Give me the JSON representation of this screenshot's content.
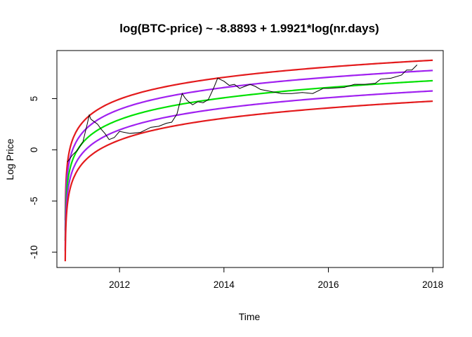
{
  "chart_data": {
    "type": "line",
    "title": "log(BTC-price) ~ -8.8893 + 1.9921*log(nr.days)",
    "xlabel": "Time",
    "ylabel": "Log Price",
    "xlim": [
      2010.8,
      2018.2
    ],
    "ylim": [
      -11.5,
      9.7
    ],
    "x_ticks": [
      2012,
      2014,
      2016,
      2018
    ],
    "x_tick_labels": [
      "2012",
      "2014",
      "2016",
      "2018"
    ],
    "y_ticks": [
      -10,
      -5,
      0,
      5
    ],
    "y_tick_labels": [
      "-10",
      "-5",
      "0",
      "5"
    ],
    "model": {
      "intercept": -8.8893,
      "slope": 1.9921,
      "start_year": 2010.957,
      "x_end": 2018.0
    },
    "bands": [
      {
        "offset": 2,
        "color": "#e31a1c"
      },
      {
        "offset": 1,
        "color": "#a020f0"
      },
      {
        "offset": 0,
        "color": "#00e000"
      },
      {
        "offset": -1,
        "color": "#a020f0"
      },
      {
        "offset": -2,
        "color": "#e31a1c"
      }
    ],
    "price_series": {
      "color": "#000000",
      "x": [
        2011.0,
        2011.1,
        2011.2,
        2011.3,
        2011.38,
        2011.42,
        2011.45,
        2011.5,
        2011.58,
        2011.65,
        2011.72,
        2011.8,
        2011.9,
        2012.0,
        2012.2,
        2012.4,
        2012.6,
        2012.75,
        2012.9,
        2013.0,
        2013.1,
        2013.2,
        2013.25,
        2013.3,
        2013.4,
        2013.5,
        2013.6,
        2013.7,
        2013.8,
        2013.88,
        2013.92,
        2014.0,
        2014.1,
        2014.2,
        2014.3,
        2014.4,
        2014.5,
        2014.6,
        2014.7,
        2014.8,
        2015.0,
        2015.1,
        2015.3,
        2015.5,
        2015.7,
        2015.9,
        2016.0,
        2016.3,
        2016.5,
        2016.7,
        2016.9,
        2017.0,
        2017.2,
        2017.4,
        2017.5,
        2017.6,
        2017.7
      ],
      "y": [
        -1.2,
        -0.5,
        0.0,
        0.8,
        2.5,
        3.4,
        3.0,
        2.8,
        2.5,
        2.0,
        1.6,
        1.0,
        1.2,
        1.8,
        1.6,
        1.7,
        2.2,
        2.3,
        2.6,
        2.7,
        3.5,
        5.5,
        5.1,
        4.8,
        4.4,
        4.7,
        4.6,
        4.9,
        6.0,
        7.0,
        6.9,
        6.7,
        6.3,
        6.4,
        6.0,
        6.2,
        6.4,
        6.2,
        5.9,
        5.8,
        5.6,
        5.5,
        5.5,
        5.6,
        5.5,
        6.0,
        6.0,
        6.1,
        6.4,
        6.4,
        6.5,
        6.9,
        7.0,
        7.3,
        7.8,
        7.8,
        8.3
      ]
    }
  }
}
